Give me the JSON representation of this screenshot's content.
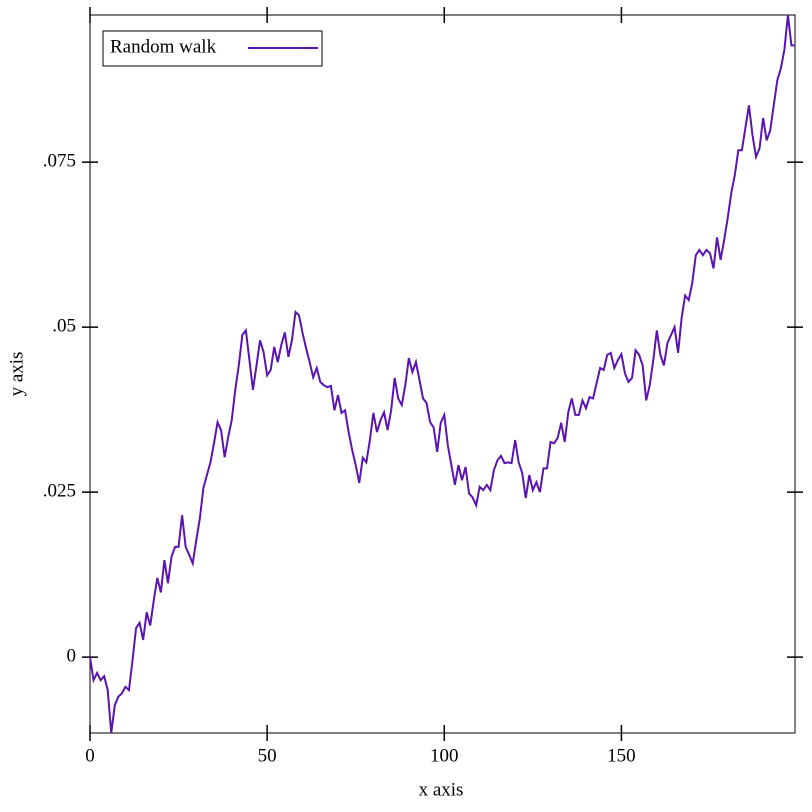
{
  "chart_data": {
    "type": "line",
    "x_label": "x axis",
    "y_label": "y axis",
    "xlim": [
      0,
      199
    ],
    "ylim": [
      -0.0115,
      0.0973
    ],
    "xticks": [
      0,
      50,
      100,
      150
    ],
    "yticks": [
      {
        "value": 0,
        "label": "0"
      },
      {
        "value": 0.025,
        "label": ".025"
      },
      {
        "value": 0.05,
        "label": ".05"
      },
      {
        "value": 0.075,
        "label": ".075"
      }
    ],
    "legend": "top-left",
    "series": [
      {
        "name": "Random walk",
        "color": "#5b14b0",
        "x": [
          0,
          1,
          2,
          3,
          4,
          5,
          6,
          7,
          8,
          9,
          10,
          11,
          12,
          13,
          14,
          15,
          16,
          17,
          18,
          19,
          20,
          21,
          22,
          23,
          24,
          25,
          26,
          27,
          28,
          29,
          30,
          31,
          32,
          33,
          34,
          35,
          36,
          37,
          38,
          39,
          40,
          41,
          42,
          43,
          44,
          45,
          46,
          47,
          48,
          49,
          50,
          51,
          52,
          53,
          54,
          55,
          56,
          57,
          58,
          59,
          60,
          61,
          62,
          63,
          64,
          65,
          66,
          67,
          68,
          69,
          70,
          71,
          72,
          73,
          74,
          75,
          76,
          77,
          78,
          79,
          80,
          81,
          82,
          83,
          84,
          85,
          86,
          87,
          88,
          89,
          90,
          91,
          92,
          93,
          94,
          95,
          96,
          97,
          98,
          99,
          100,
          101,
          102,
          103,
          104,
          105,
          106,
          107,
          108,
          109,
          110,
          111,
          112,
          113,
          114,
          115,
          116,
          117,
          118,
          119,
          120,
          121,
          122,
          123,
          124,
          125,
          126,
          127,
          128,
          129,
          130,
          131,
          132,
          133,
          134,
          135,
          136,
          137,
          138,
          139,
          140,
          141,
          142,
          143,
          144,
          145,
          146,
          147,
          148,
          149,
          150,
          151,
          152,
          153,
          154,
          155,
          156,
          157,
          158,
          159,
          160,
          161,
          162,
          163,
          164,
          165,
          166,
          167,
          168,
          169,
          170,
          171,
          172,
          173,
          174,
          175,
          176,
          177,
          178,
          179,
          180,
          181,
          182,
          183,
          184,
          185,
          186,
          187,
          188,
          189,
          190,
          191,
          192,
          193,
          194,
          195,
          196,
          197,
          198,
          199
        ],
        "values": [
          0,
          -0.0035,
          -0.0024,
          -0.0035,
          -0.0029,
          -0.005,
          -0.0115,
          -0.0073,
          -0.006,
          -0.0055,
          -0.0045,
          -0.005,
          -0.0005,
          0.0044,
          0.0052,
          0.0026,
          0.0068,
          0.0048,
          0.0086,
          0.012,
          0.0098,
          0.0147,
          0.0112,
          0.0152,
          0.0167,
          0.0167,
          0.0215,
          0.0167,
          0.0155,
          0.0142,
          0.0177,
          0.021,
          0.0256,
          0.0276,
          0.0295,
          0.0324,
          0.0356,
          0.0344,
          0.0303,
          0.0333,
          0.0359,
          0.0405,
          0.0442,
          0.0488,
          0.0495,
          0.045,
          0.0405,
          0.0442,
          0.048,
          0.0462,
          0.0427,
          0.0435,
          0.047,
          0.0447,
          0.0473,
          0.0492,
          0.0455,
          0.048,
          0.0523,
          0.0518,
          0.0491,
          0.0468,
          0.0447,
          0.0424,
          0.0438,
          0.0417,
          0.0412,
          0.0409,
          0.0411,
          0.0374,
          0.0397,
          0.037,
          0.0374,
          0.0341,
          0.0314,
          0.0291,
          0.0264,
          0.0302,
          0.0295,
          0.0329,
          0.037,
          0.0341,
          0.0359,
          0.0371,
          0.0344,
          0.0374,
          0.0423,
          0.0392,
          0.0382,
          0.0412,
          0.0453,
          0.0432,
          0.0447,
          0.042,
          0.0392,
          0.0385,
          0.0356,
          0.0348,
          0.0311,
          0.0355,
          0.0367,
          0.0321,
          0.0291,
          0.0261,
          0.0291,
          0.0268,
          0.0288,
          0.0248,
          0.0242,
          0.023,
          0.0258,
          0.0253,
          0.0261,
          0.0253,
          0.0283,
          0.0298,
          0.0305,
          0.0294,
          0.0295,
          0.0294,
          0.0329,
          0.0295,
          0.0279,
          0.0241,
          0.0276,
          0.0253,
          0.0265,
          0.025,
          0.0286,
          0.0286,
          0.0326,
          0.0324,
          0.0332,
          0.0355,
          0.0326,
          0.0371,
          0.0392,
          0.0367,
          0.0367,
          0.0389,
          0.0377,
          0.0394,
          0.0392,
          0.0415,
          0.0438,
          0.0435,
          0.0458,
          0.0461,
          0.0438,
          0.045,
          0.0459,
          0.043,
          0.0417,
          0.0423,
          0.0465,
          0.0458,
          0.0442,
          0.0389,
          0.0412,
          0.045,
          0.0495,
          0.0458,
          0.0442,
          0.0476,
          0.0488,
          0.05,
          0.0461,
          0.0514,
          0.0548,
          0.0541,
          0.0567,
          0.0609,
          0.0617,
          0.0609,
          0.0617,
          0.0612,
          0.0589,
          0.0636,
          0.0602,
          0.0632,
          0.0665,
          0.0703,
          0.073,
          0.0768,
          0.0768,
          0.0802,
          0.0836,
          0.0791,
          0.0758,
          0.0771,
          0.0817,
          0.0783,
          0.0798,
          0.0836,
          0.0874,
          0.0892,
          0.092,
          0.0973,
          0.0927,
          0.0927
        ]
      }
    ]
  }
}
